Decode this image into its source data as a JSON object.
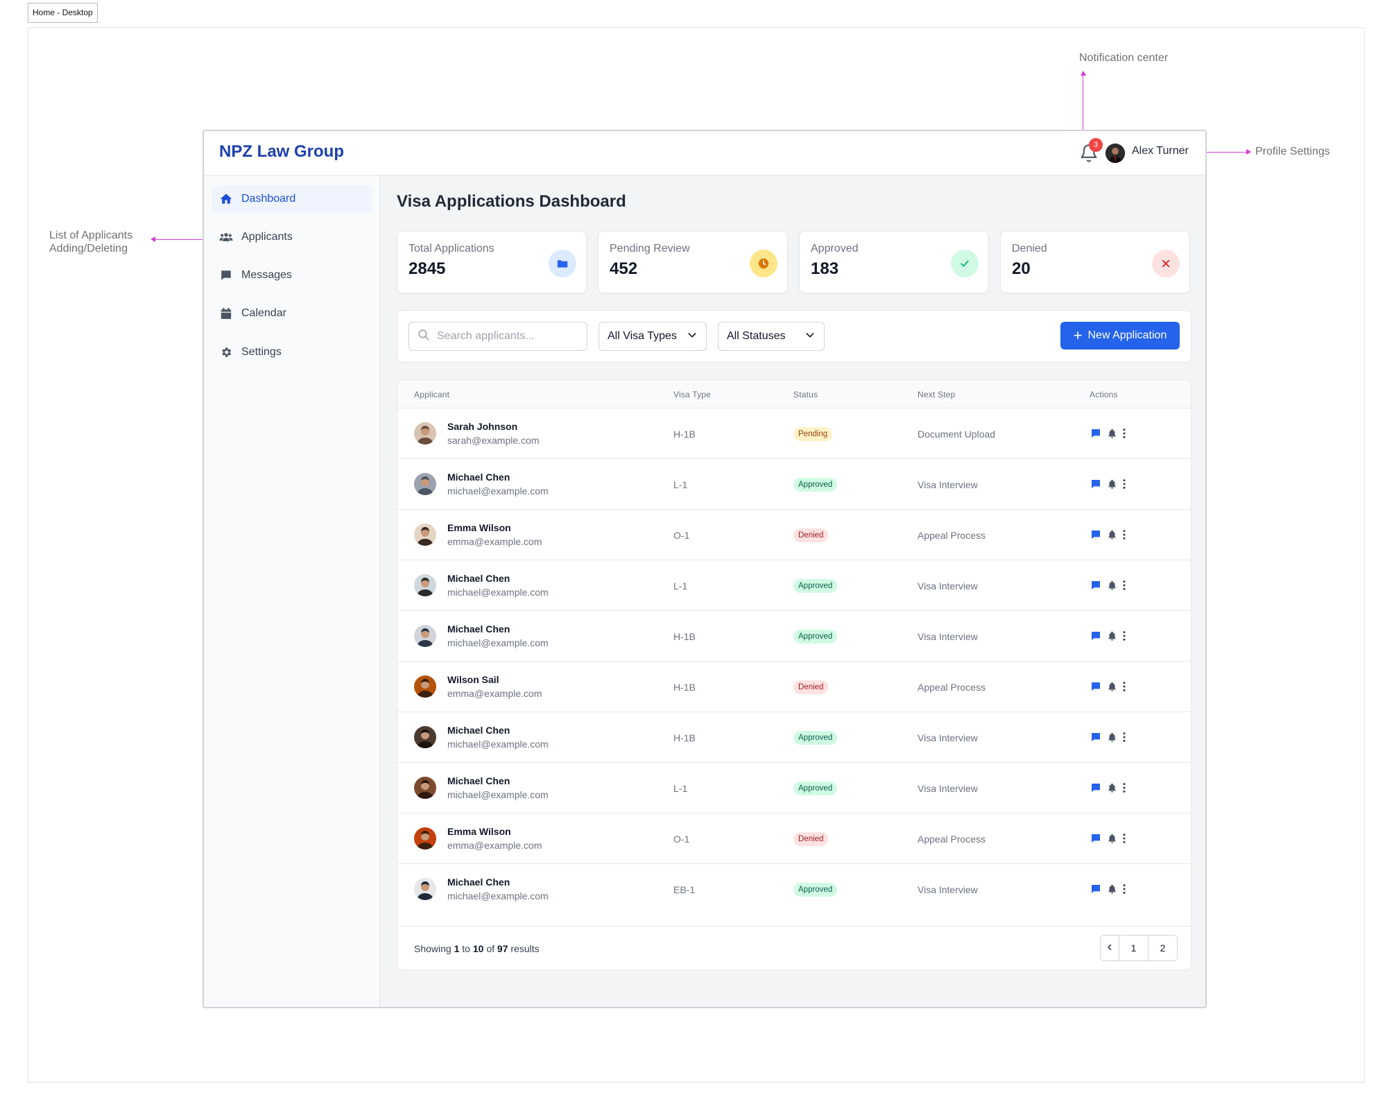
{
  "frame_label": "Home - Desktop",
  "annotations": {
    "notification": "Notification center",
    "profile": "Profile Settings",
    "applicants_line1": "List of Applicants",
    "applicants_line2": "Adding/Deleting"
  },
  "header": {
    "brand": "NPZ Law Group",
    "notification_count": "3",
    "user_name": "Alex Turner"
  },
  "sidebar": {
    "items": [
      {
        "label": "Dashboard",
        "icon": "home-icon",
        "active": true
      },
      {
        "label": "Applicants",
        "icon": "users-icon",
        "active": false
      },
      {
        "label": "Messages",
        "icon": "message-icon",
        "active": false
      },
      {
        "label": "Calendar",
        "icon": "calendar-icon",
        "active": false
      },
      {
        "label": "Settings",
        "icon": "gear-icon",
        "active": false
      }
    ]
  },
  "main": {
    "title": "Visa Applications Dashboard",
    "stats": [
      {
        "label": "Total Applications",
        "value": "2845",
        "icon": "folder-icon",
        "color": "#2563eb",
        "bg": "#dbeafe"
      },
      {
        "label": "Pending Review",
        "value": "452",
        "icon": "clock-icon",
        "color": "#d97706",
        "bg": "#fef3c7"
      },
      {
        "label": "Approved",
        "value": "183",
        "icon": "check-icon",
        "color": "#10b981",
        "bg": "#d1fae5"
      },
      {
        "label": "Denied",
        "value": "20",
        "icon": "x-icon",
        "color": "#dc2626",
        "bg": "#fee2e2"
      }
    ],
    "filters": {
      "search_placeholder": "Search applicants...",
      "visa_type": "All Visa Types",
      "status": "All Statuses",
      "new_button": "New Application"
    },
    "table": {
      "columns": [
        "Applicant",
        "Visa Type",
        "Status",
        "Next Step",
        "Actions"
      ],
      "rows": [
        {
          "name": "Sarah Johnson",
          "email": "sarah@example.com",
          "visa": "H-1B",
          "status": "Pending",
          "status_kind": "pending",
          "next": "Document Upload"
        },
        {
          "name": "Michael Chen",
          "email": "michael@example.com",
          "visa": "L-1",
          "status": "Approved",
          "status_kind": "approved",
          "next": "Visa Interview"
        },
        {
          "name": "Emma Wilson",
          "email": "emma@example.com",
          "visa": "O-1",
          "status": "Denied",
          "status_kind": "denied",
          "next": "Appeal Process"
        },
        {
          "name": "Michael Chen",
          "email": "michael@example.com",
          "visa": "L-1",
          "status": "Approved",
          "status_kind": "approved",
          "next": "Visa Interview"
        },
        {
          "name": "Michael Chen",
          "email": "michael@example.com",
          "visa": "H-1B",
          "status": "Approved",
          "status_kind": "approved",
          "next": "Visa Interview"
        },
        {
          "name": "Wilson Sail",
          "email": "emma@example.com",
          "visa": "H-1B",
          "status": "Denied",
          "status_kind": "denied",
          "next": "Appeal Process"
        },
        {
          "name": "Michael Chen",
          "email": "michael@example.com",
          "visa": "H-1B",
          "status": "Approved",
          "status_kind": "approved",
          "next": "Visa Interview"
        },
        {
          "name": "Michael Chen",
          "email": "michael@example.com",
          "visa": "L-1",
          "status": "Approved",
          "status_kind": "approved",
          "next": "Visa Interview"
        },
        {
          "name": "Emma Wilson",
          "email": "emma@example.com",
          "visa": "O-1",
          "status": "Denied",
          "status_kind": "denied",
          "next": "Appeal Process"
        },
        {
          "name": "Michael Chen",
          "email": "michael@example.com",
          "visa": "EB-1",
          "status": "Approved",
          "status_kind": "approved",
          "next": "Visa Interview"
        }
      ]
    },
    "pagination": {
      "showing": "Showing",
      "from": "1",
      "to_word": "to",
      "to": "10",
      "of_word": "of",
      "total": "97",
      "results_word": "results",
      "pages": [
        "1",
        "2"
      ]
    }
  },
  "colors": {
    "accent": "#2563eb",
    "brand": "#1e40af",
    "annotation": "#d63ad0"
  }
}
